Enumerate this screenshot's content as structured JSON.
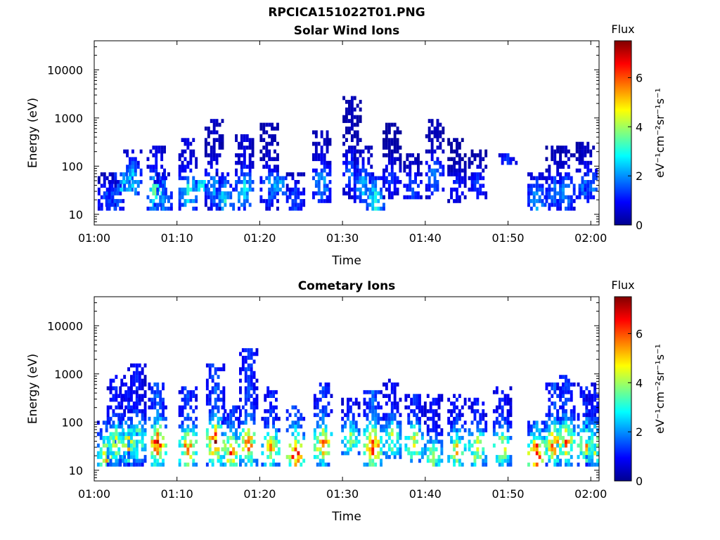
{
  "figure": {
    "title": "RPCICA151022T01.PNG"
  },
  "chart_data": [
    {
      "type": "heatmap",
      "title": "Solar Wind Ions",
      "xlabel": "Time",
      "ylabel": "Energy (eV)",
      "y_scale": "log",
      "xlim": [
        "01:00",
        "02:01"
      ],
      "ylim": [
        6,
        40000
      ],
      "x_ticks": [
        "01:00",
        "01:10",
        "01:20",
        "01:30",
        "01:40",
        "01:50",
        "02:00"
      ],
      "y_ticks": [
        "10",
        "100",
        "1000",
        "10000"
      ],
      "colorbar": {
        "title": "Flux",
        "label": "eV⁻¹cm⁻²sr⁻¹s⁻¹",
        "range": [
          0,
          7.5
        ],
        "ticks": [
          "0",
          "2",
          "4",
          "6"
        ],
        "colormap": "jet"
      },
      "grid": false,
      "bursts": [
        {
          "t": "01:01:35",
          "emin": 12,
          "emax": 60,
          "peak": 1.6
        },
        {
          "t": "01:02:30",
          "emin": 12,
          "emax": 45,
          "peak": 1.8
        },
        {
          "t": "01:03:35",
          "emin": 30,
          "emax": 60,
          "peak": 2.6
        },
        {
          "t": "01:04:40",
          "emin": 25,
          "emax": 190,
          "peak": 2.8
        },
        {
          "t": "01:07:30",
          "emin": 12,
          "emax": 230,
          "peak": 3.6
        },
        {
          "t": "01:08:20",
          "emin": 12,
          "emax": 60,
          "peak": 2.0
        },
        {
          "t": "01:11:20",
          "emin": 12,
          "emax": 300,
          "peak": 3.0
        },
        {
          "t": "01:12:40",
          "emin": 30,
          "emax": 45,
          "peak": 3.4
        },
        {
          "t": "01:14:30",
          "emin": 12,
          "emax": 780,
          "peak": 2.2
        },
        {
          "t": "01:15:50",
          "emin": 12,
          "emax": 60,
          "peak": 2.8
        },
        {
          "t": "01:18:10",
          "emin": 12,
          "emax": 420,
          "peak": 2.8
        },
        {
          "t": "01:21:10",
          "emin": 12,
          "emax": 700,
          "peak": 2.0
        },
        {
          "t": "01:22:10",
          "emin": 25,
          "emax": 60,
          "peak": 2.6
        },
        {
          "t": "01:24:20",
          "emin": 12,
          "emax": 60,
          "peak": 1.6
        },
        {
          "t": "01:27:30",
          "emin": 18,
          "emax": 460,
          "peak": 2.4
        },
        {
          "t": "01:31:10",
          "emin": 20,
          "emax": 2400,
          "peak": 1.8
        },
        {
          "t": "01:32:30",
          "emin": 18,
          "emax": 220,
          "peak": 2.4
        },
        {
          "t": "01:34:00",
          "emin": 12,
          "emax": 60,
          "peak": 3.2
        },
        {
          "t": "01:36:00",
          "emin": 20,
          "emax": 640,
          "peak": 1.4
        },
        {
          "t": "01:38:30",
          "emin": 20,
          "emax": 150,
          "peak": 1.6
        },
        {
          "t": "01:41:10",
          "emin": 22,
          "emax": 880,
          "peak": 2.0
        },
        {
          "t": "01:43:50",
          "emin": 16,
          "emax": 350,
          "peak": 1.2
        },
        {
          "t": "01:46:20",
          "emin": 20,
          "emax": 190,
          "peak": 1.4
        },
        {
          "t": "01:50:00",
          "emin": 100,
          "emax": 150,
          "peak": 1.3
        },
        {
          "t": "01:53:30",
          "emin": 12,
          "emax": 60,
          "peak": 2.4
        },
        {
          "t": "01:55:40",
          "emin": 12,
          "emax": 220,
          "peak": 2.0
        },
        {
          "t": "01:57:00",
          "emin": 12,
          "emax": 230,
          "peak": 2.2
        },
        {
          "t": "01:59:20",
          "emin": 18,
          "emax": 290,
          "peak": 2.0
        },
        {
          "t": "02:00:20",
          "emin": 25,
          "emax": 80,
          "peak": 1.8
        }
      ]
    },
    {
      "type": "heatmap",
      "title": "Cometary Ions",
      "xlabel": "Time",
      "ylabel": "Energy (eV)",
      "y_scale": "log",
      "xlim": [
        "01:00",
        "02:01"
      ],
      "ylim": [
        6,
        40000
      ],
      "x_ticks": [
        "01:00",
        "01:10",
        "01:20",
        "01:30",
        "01:40",
        "01:50",
        "02:00"
      ],
      "y_ticks": [
        "10",
        "100",
        "1000",
        "10000"
      ],
      "colorbar": {
        "title": "Flux",
        "label": "eV⁻¹cm⁻²sr⁻¹s⁻¹",
        "range": [
          0,
          7.5
        ],
        "ticks": [
          "0",
          "2",
          "4",
          "6"
        ],
        "colormap": "jet"
      },
      "grid": false,
      "bursts": [
        {
          "t": "01:01:30",
          "emin": 10,
          "emax": 90,
          "peak": 5.2
        },
        {
          "t": "01:02:40",
          "emin": 12,
          "emax": 850,
          "peak": 4.6
        },
        {
          "t": "01:04:10",
          "emin": 12,
          "emax": 600,
          "peak": 4.8
        },
        {
          "t": "01:05:10",
          "emin": 12,
          "emax": 1450,
          "peak": 4.4
        },
        {
          "t": "01:07:40",
          "emin": 12,
          "emax": 600,
          "peak": 6.6
        },
        {
          "t": "01:11:20",
          "emin": 10,
          "emax": 500,
          "peak": 5.8
        },
        {
          "t": "01:14:40",
          "emin": 10,
          "emax": 1450,
          "peak": 6.4
        },
        {
          "t": "01:16:30",
          "emin": 10,
          "emax": 200,
          "peak": 5.6
        },
        {
          "t": "01:18:40",
          "emin": 7,
          "emax": 2700,
          "peak": 5.8
        },
        {
          "t": "01:21:20",
          "emin": 10,
          "emax": 450,
          "peak": 5.0
        },
        {
          "t": "01:24:20",
          "emin": 10,
          "emax": 200,
          "peak": 6.6
        },
        {
          "t": "01:27:40",
          "emin": 12,
          "emax": 600,
          "peak": 5.6
        },
        {
          "t": "01:31:00",
          "emin": 20,
          "emax": 250,
          "peak": 4.0
        },
        {
          "t": "01:33:40",
          "emin": 12,
          "emax": 380,
          "peak": 6.6
        },
        {
          "t": "01:36:00",
          "emin": 16,
          "emax": 620,
          "peak": 4.0
        },
        {
          "t": "01:38:40",
          "emin": 15,
          "emax": 350,
          "peak": 4.8
        },
        {
          "t": "01:41:00",
          "emin": 7,
          "emax": 300,
          "peak": 4.0
        },
        {
          "t": "01:43:50",
          "emin": 10,
          "emax": 300,
          "peak": 4.6
        },
        {
          "t": "01:46:20",
          "emin": 12,
          "emax": 250,
          "peak": 4.8
        },
        {
          "t": "01:49:20",
          "emin": 10,
          "emax": 500,
          "peak": 4.6
        },
        {
          "t": "01:53:30",
          "emin": 12,
          "emax": 90,
          "peak": 6.4
        },
        {
          "t": "01:55:40",
          "emin": 12,
          "emax": 560,
          "peak": 6.0
        },
        {
          "t": "01:57:00",
          "emin": 12,
          "emax": 800,
          "peak": 5.6
        },
        {
          "t": "01:59:30",
          "emin": 12,
          "emax": 550,
          "peak": 5.0
        },
        {
          "t": "02:00:30",
          "emin": 12,
          "emax": 400,
          "peak": 4.4
        }
      ]
    }
  ]
}
